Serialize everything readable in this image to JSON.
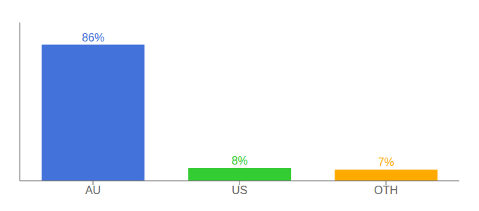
{
  "chart_data": {
    "type": "bar",
    "categories": [
      "AU",
      "US",
      "OTH"
    ],
    "values": [
      86,
      8,
      7
    ],
    "value_labels": [
      "86%",
      "8%",
      "7%"
    ],
    "data_labels": true,
    "colors": [
      "#4472db",
      "#33cc33",
      "#ffaa00"
    ],
    "ylim": [
      0,
      100
    ],
    "tick_labels": "x"
  }
}
